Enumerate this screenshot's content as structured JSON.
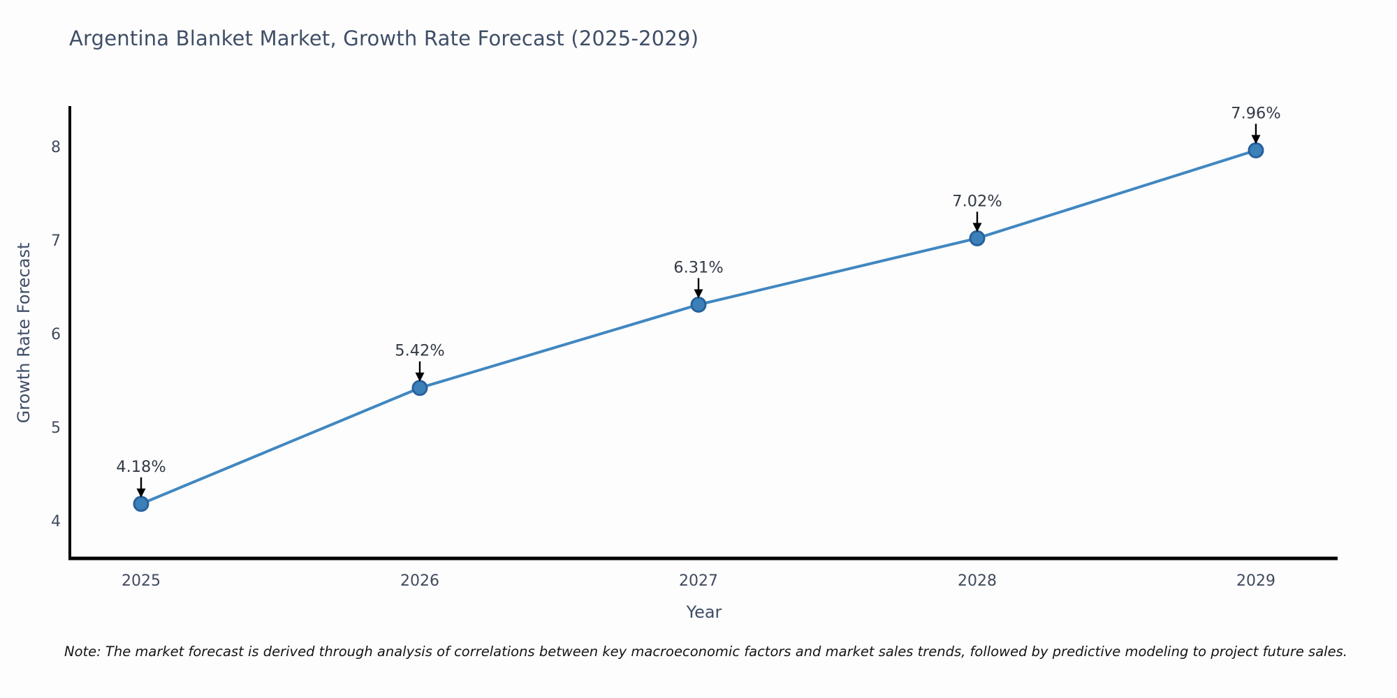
{
  "chart_data": {
    "type": "line",
    "title": "Argentina Blanket Market, Growth Rate Forecast (2025-2029)",
    "xlabel": "Year",
    "ylabel": "Growth Rate Forecast",
    "x": [
      "2025",
      "2026",
      "2027",
      "2028",
      "2029"
    ],
    "values": [
      4.18,
      5.42,
      6.31,
      7.02,
      7.96
    ],
    "point_labels": [
      "4.18%",
      "5.42%",
      "6.31%",
      "7.02%",
      "7.96%"
    ],
    "yticks": [
      4,
      5,
      6,
      7,
      8
    ],
    "ylim": [
      3.6,
      8.45
    ],
    "grid": false,
    "legend": "none",
    "colors": {
      "line": "#4187c0",
      "marker_fill": "#3c80ba",
      "marker_edge": "#27629b",
      "axis": "#000000",
      "tick_label": "#414b5d",
      "title": "#3f4e66",
      "annotation": "#333a45",
      "arrow": "#000000"
    }
  },
  "footnote": "Note: The market forecast is derived through analysis of correlations between key macroeconomic factors and market sales trends, followed by predictive modeling to project future sales."
}
